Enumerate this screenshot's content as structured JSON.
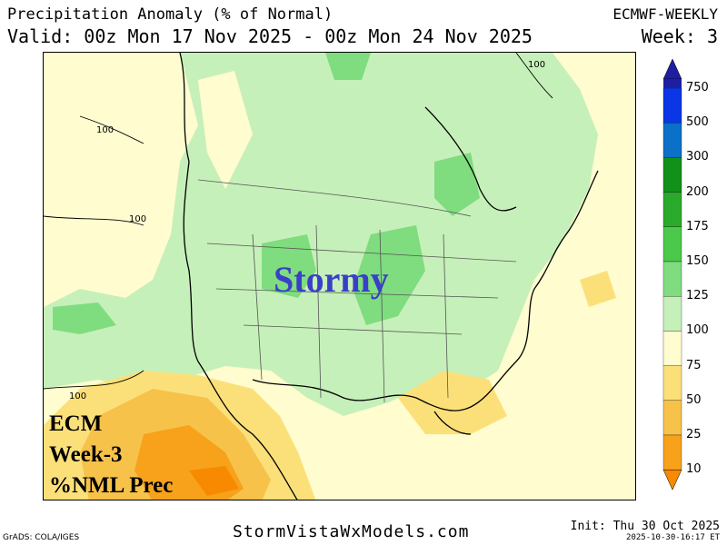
{
  "header": {
    "title": "Precipitation Anomaly (% of Normal)",
    "valid": "Valid: 00z Mon 17 Nov 2025 - 00z Mon 24 Nov 2025",
    "model": "ECMWF-WEEKLY",
    "week": "Week: 3"
  },
  "map": {
    "headline": "Stormy",
    "label_lines": [
      "ECM",
      "Week-3",
      "%NML Prec"
    ],
    "contour_labels": [
      "100",
      "100",
      "100",
      "100"
    ]
  },
  "legend": {
    "levels": [
      "750",
      "500",
      "300",
      "200",
      "175",
      "150",
      "125",
      "100",
      "75",
      "50",
      "25",
      "10"
    ],
    "colors": [
      "#1e1ea0",
      "#0a36e6",
      "#0a70c8",
      "#119119",
      "#2aaa2a",
      "#4ac94a",
      "#7fdc7f",
      "#c6f0b9",
      "#fffccf",
      "#fbe07a",
      "#f7c24a",
      "#f7a21a",
      "#f78a00"
    ]
  },
  "footer": {
    "site": "StormVistaWxModels.com",
    "grads": "GrADS: COLA/IGES",
    "init": "Init: Thu 30 Oct 2025",
    "timestamp": "2025-10-30-16:17 ET"
  }
}
